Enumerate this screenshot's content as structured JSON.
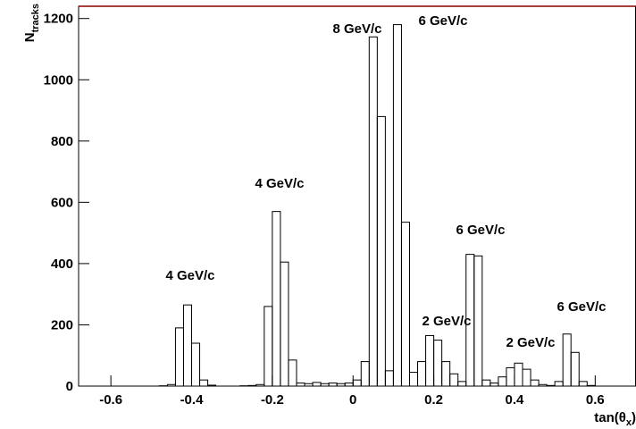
{
  "chart_data": {
    "type": "histogram",
    "xlabel": [
      "tan(θ",
      "x",
      ")"
    ],
    "ylabel": [
      "N",
      "tracks"
    ],
    "bins": [
      -0.68,
      -0.66,
      -0.64,
      -0.62,
      -0.6,
      -0.58,
      -0.56,
      -0.54,
      -0.52,
      -0.5,
      -0.48,
      -0.46,
      -0.44,
      -0.42,
      -0.4,
      -0.38,
      -0.36,
      -0.34,
      -0.32,
      -0.3,
      -0.28,
      -0.26,
      -0.24,
      -0.22,
      -0.2,
      -0.18,
      -0.16,
      -0.14,
      -0.12,
      -0.1,
      -0.08,
      -0.06,
      -0.04,
      -0.02,
      0.0,
      0.02,
      0.04,
      0.06,
      0.08,
      0.1,
      0.12,
      0.14,
      0.16,
      0.18,
      0.2,
      0.22,
      0.24,
      0.26,
      0.28,
      0.3,
      0.32,
      0.34,
      0.36,
      0.38,
      0.4,
      0.42,
      0.44,
      0.46,
      0.48,
      0.5,
      0.52,
      0.54,
      0.56,
      0.58,
      0.6,
      0.62,
      0.64,
      0.66,
      0.68,
      0.7
    ],
    "values": [
      0,
      0,
      0,
      0,
      0,
      0,
      0,
      0,
      0,
      0,
      1,
      5,
      190,
      265,
      140,
      20,
      3,
      0,
      0,
      0,
      1,
      2,
      5,
      260,
      570,
      405,
      85,
      10,
      8,
      12,
      8,
      10,
      8,
      10,
      20,
      80,
      1140,
      880,
      50,
      1180,
      535,
      45,
      80,
      165,
      150,
      80,
      40,
      15,
      430,
      425,
      20,
      10,
      30,
      60,
      75,
      55,
      20,
      5,
      2,
      15,
      170,
      110,
      15,
      2,
      0,
      0,
      0,
      0,
      0
    ],
    "color": "#000000",
    "xlim": [
      -0.68,
      0.7
    ],
    "xticks": [
      -0.6,
      -0.4,
      -0.2,
      0,
      0.2,
      0.4,
      0.6
    ],
    "ylim": [
      0,
      1240
    ],
    "yticks": [
      0,
      200,
      400,
      600,
      800,
      1000,
      1200
    ],
    "annotations": [
      "4 GeV/c",
      "4 GeV/c",
      "8 GeV/c",
      "6 GeV/c",
      "6 GeV/c",
      "2 GeV/c",
      "6 GeV/c",
      "2 GeV/c"
    ]
  }
}
